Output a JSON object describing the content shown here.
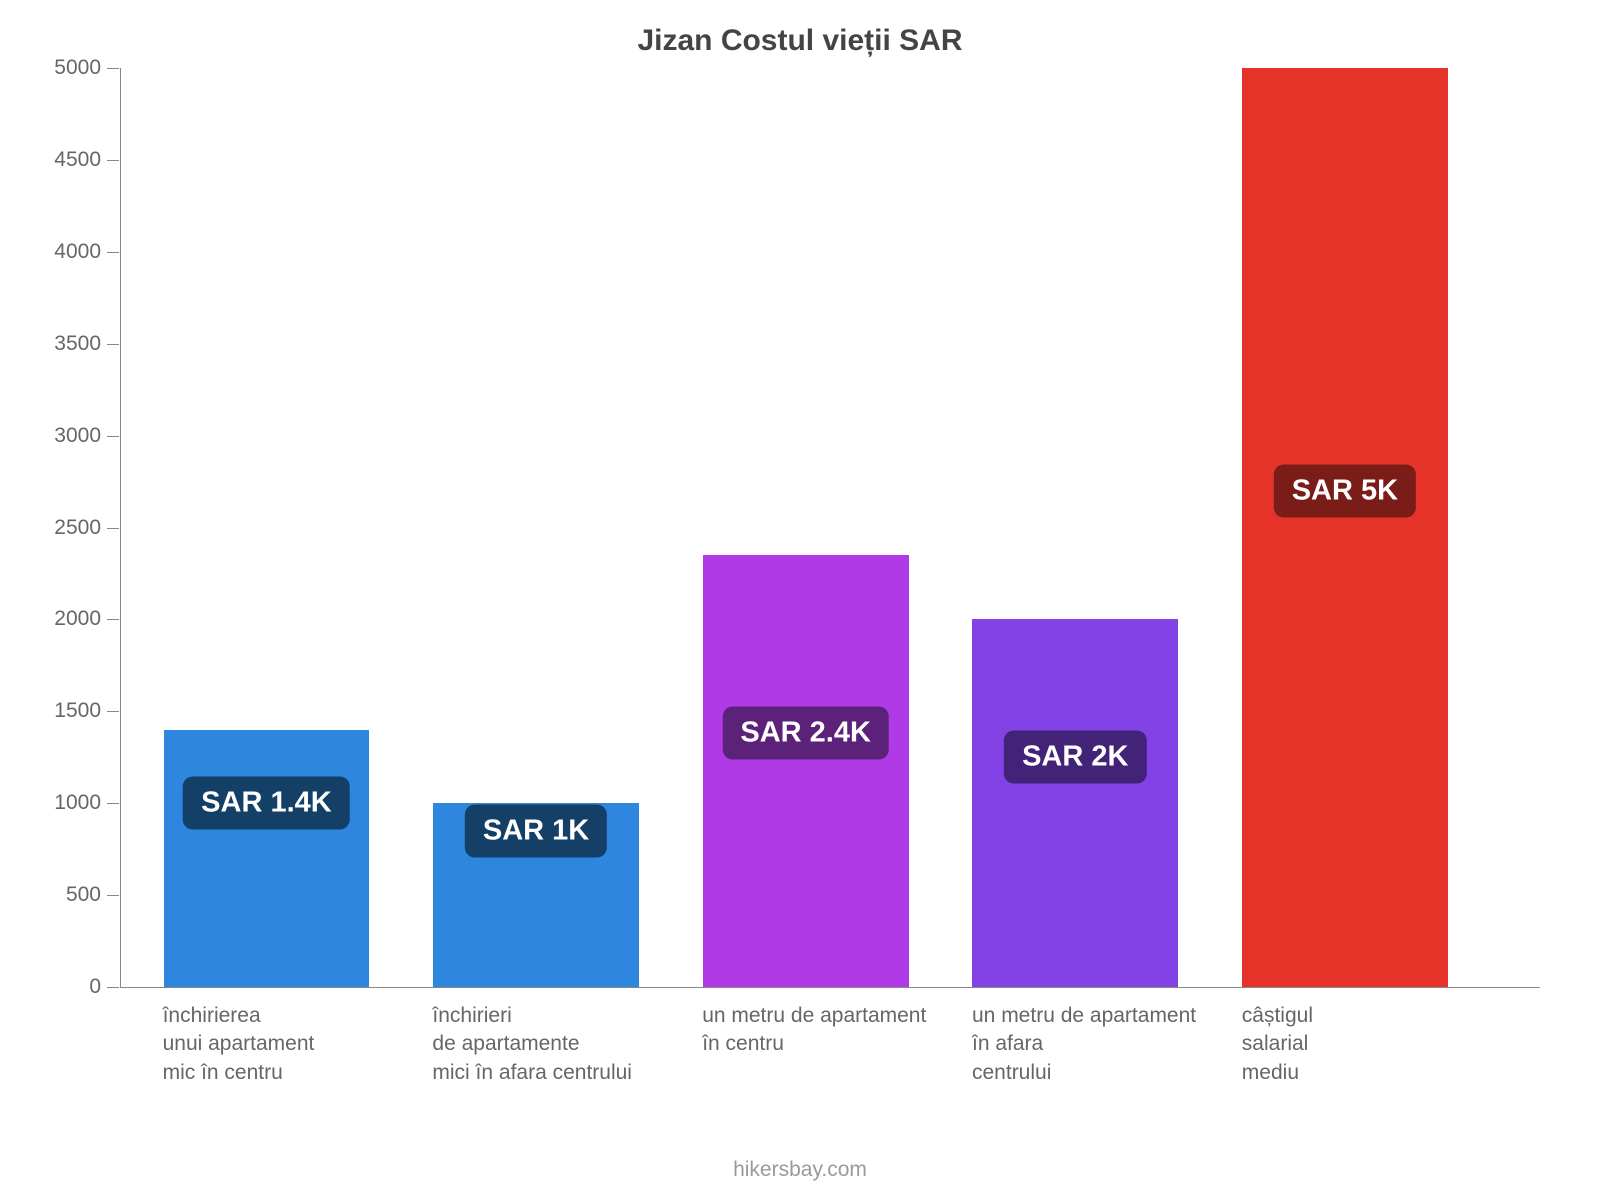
{
  "chart": {
    "type": "bar",
    "title": "Jizan Costul vieții SAR",
    "title_fontsize": 30,
    "title_color": "#444444",
    "background_color": "#ffffff",
    "axis_color": "#888888",
    "tick_label_color": "#666666",
    "tick_label_fontsize": 21,
    "xlabel_fontsize": 21,
    "ylim": [
      0,
      5000
    ],
    "ytick_step": 500,
    "yticks": [
      0,
      500,
      1000,
      1500,
      2000,
      2500,
      3000,
      3500,
      4000,
      4500,
      5000
    ],
    "bar_width_pct": 14.5,
    "bar_gap_pct": 4.5,
    "left_pad_pct": 3,
    "badge_fontsize": 29,
    "badge_radius": 10,
    "bars": [
      {
        "label_lines": [
          "închirierea",
          "unui apartament",
          "mic în centru"
        ],
        "value": 1400,
        "bar_color": "#2e86de",
        "badge_text": "SAR 1.4K",
        "badge_bg": "#143f66",
        "badge_pos": 1000
      },
      {
        "label_lines": [
          "închirieri",
          "de apartamente",
          "mici în afara centrului"
        ],
        "value": 1000,
        "bar_color": "#2e86de",
        "badge_text": "SAR 1K",
        "badge_bg": "#143f66",
        "badge_pos": 850
      },
      {
        "label_lines": [
          "un metru de apartament",
          "în centru"
        ],
        "value": 2350,
        "bar_color": "#b03ae6",
        "badge_text": "SAR 2.4K",
        "badge_bg": "#5c2178",
        "badge_pos": 1380
      },
      {
        "label_lines": [
          "un metru de apartament",
          "în afara",
          "centrului"
        ],
        "value": 2000,
        "bar_color": "#8242e6",
        "badge_text": "SAR 2K",
        "badge_bg": "#432378",
        "badge_pos": 1250
      },
      {
        "label_lines": [
          "câștigul",
          "salarial",
          "mediu"
        ],
        "value": 5000,
        "bar_color": "#e6332a",
        "badge_text": "SAR 5K",
        "badge_bg": "#7a1c17",
        "badge_pos": 2700
      }
    ],
    "footer": "hikersbay.com",
    "footer_color": "#9a9a9a",
    "footer_fontsize": 21
  }
}
